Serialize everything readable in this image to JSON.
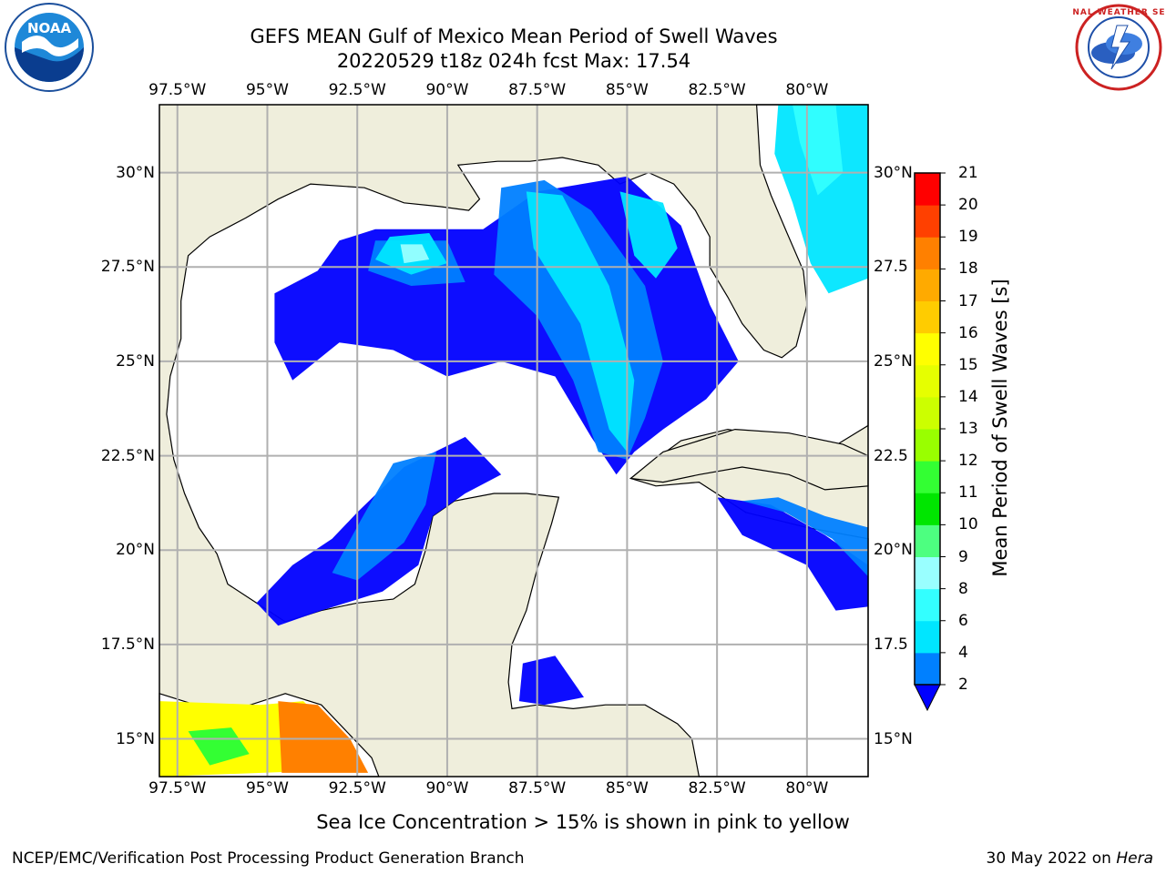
{
  "header": {
    "title_line1": "GEFS MEAN Gulf of Mexico Mean Period of Swell Waves",
    "title_line2": "20220529 t18z 024h fcst   Max: 17.54"
  },
  "logos": {
    "noaa_text": "NOAA",
    "nws_text": "NATIONAL WEATHER SERVICE"
  },
  "map": {
    "lon_ticks": [
      "97.5°W",
      "95°W",
      "92.5°W",
      "90°W",
      "87.5°W",
      "85°W",
      "82.5°W",
      "80°W"
    ],
    "lat_ticks_left": [
      "30°N",
      "27.5°N",
      "25°N",
      "22.5°N",
      "20°N",
      "17.5°N",
      "15°N"
    ],
    "lat_ticks_right": [
      "30°N",
      "27.5",
      "25°N",
      "22.5",
      "20°N",
      "17.5",
      "15°N"
    ],
    "extent": {
      "lon_min": -98,
      "lon_max": -78.3,
      "lat_min": 14,
      "lat_max": 31.8
    },
    "colors": {
      "land": "#efeedc",
      "ocean": "#ffffff",
      "grid": "#b0b0b0",
      "coast": "#000000"
    }
  },
  "colorbar": {
    "title": "Mean Period of Swell Waves [s]",
    "labels": [
      "2",
      "4",
      "6",
      "8",
      "9",
      "10",
      "11",
      "12",
      "13",
      "14",
      "15",
      "16",
      "17",
      "18",
      "19",
      "20",
      "21"
    ],
    "colors": [
      "#0000ff",
      "#0080ff",
      "#00e6ff",
      "#33ffff",
      "#99ffff",
      "#4dff80",
      "#00e600",
      "#33ff33",
      "#99ff00",
      "#ccff00",
      "#e6ff00",
      "#ffff00",
      "#ffcc00",
      "#ffaa00",
      "#ff8000",
      "#ff4000",
      "#ff0000"
    ],
    "extend_color": "#0000ff"
  },
  "note": "Sea Ice Concentration > 15% is shown in pink to yellow",
  "footer": {
    "left": "NCEP/EMC/Verification Post Processing Product Generation Branch",
    "right_prefix": "30 May 2022 on ",
    "right_italic": "Hera"
  }
}
